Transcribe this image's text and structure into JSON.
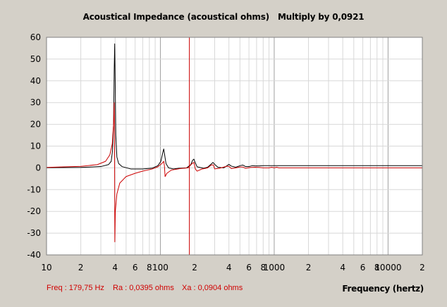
{
  "chart_data": {
    "type": "line",
    "title": "Acoustical Impedance (acoustical ohms)",
    "title_note": "Multiply by 0,0921",
    "xlabel": "Frequency (hertz)",
    "ylabel": "",
    "x_scale": "log",
    "xlim": [
      10,
      20000
    ],
    "ylim": [
      -40,
      60
    ],
    "y_ticks": [
      60,
      50,
      40,
      30,
      20,
      10,
      0,
      -10,
      -20,
      -30,
      -40
    ],
    "x_ticks": [
      {
        "value": 10,
        "label": "10"
      },
      {
        "value": 20,
        "label": "2"
      },
      {
        "value": 40,
        "label": "4"
      },
      {
        "value": 60,
        "label": "6"
      },
      {
        "value": 80,
        "label": "8"
      },
      {
        "value": 100,
        "label": "100"
      },
      {
        "value": 200,
        "label": "2"
      },
      {
        "value": 400,
        "label": "4"
      },
      {
        "value": 600,
        "label": "6"
      },
      {
        "value": 800,
        "label": "8"
      },
      {
        "value": 1000,
        "label": "1000"
      },
      {
        "value": 2000,
        "label": "2"
      },
      {
        "value": 4000,
        "label": "4"
      },
      {
        "value": 6000,
        "label": "6"
      },
      {
        "value": 8000,
        "label": "8"
      },
      {
        "value": 10000,
        "label": "10000"
      },
      {
        "value": 20000,
        "label": "2"
      }
    ],
    "grid": true,
    "cursor_x": 179.75,
    "series": [
      {
        "color": "#000000",
        "points": [
          [
            10,
            0.1
          ],
          [
            20,
            0.2
          ],
          [
            30,
            0.6
          ],
          [
            35,
            1.5
          ],
          [
            37,
            3
          ],
          [
            38,
            8
          ],
          [
            38.8,
            20
          ],
          [
            39.3,
            45
          ],
          [
            39.7,
            57
          ],
          [
            40.1,
            40
          ],
          [
            40.6,
            15
          ],
          [
            41.5,
            5
          ],
          [
            43,
            2
          ],
          [
            46,
            0.6
          ],
          [
            55,
            -0.5
          ],
          [
            70,
            -0.5
          ],
          [
            85,
            -0.1
          ],
          [
            95,
            1
          ],
          [
            101,
            3
          ],
          [
            105,
            7
          ],
          [
            107,
            8.7
          ],
          [
            109,
            6
          ],
          [
            112,
            2
          ],
          [
            118,
            0
          ],
          [
            130,
            -0.5
          ],
          [
            145,
            -0.2
          ],
          [
            170,
            0
          ],
          [
            185,
            1.5
          ],
          [
            192,
            3.5
          ],
          [
            197,
            4
          ],
          [
            202,
            2.5
          ],
          [
            210,
            0.5
          ],
          [
            240,
            -0.2
          ],
          [
            260,
            0.3
          ],
          [
            280,
            1.8
          ],
          [
            290,
            2.5
          ],
          [
            300,
            1.6
          ],
          [
            320,
            0.3
          ],
          [
            360,
            0
          ],
          [
            385,
            1
          ],
          [
            400,
            1.6
          ],
          [
            420,
            0.8
          ],
          [
            460,
            0.3
          ],
          [
            500,
            1
          ],
          [
            530,
            1.3
          ],
          [
            560,
            0.6
          ],
          [
            600,
            0.6
          ],
          [
            640,
            1
          ],
          [
            680,
            0.9
          ],
          [
            740,
            0.9
          ],
          [
            800,
            1
          ],
          [
            1000,
            1
          ],
          [
            2000,
            1
          ],
          [
            5000,
            1
          ],
          [
            10000,
            1
          ],
          [
            20000,
            1
          ]
        ]
      },
      {
        "color": "#cc0000",
        "points": [
          [
            10,
            0.2
          ],
          [
            20,
            0.7
          ],
          [
            28,
            1.5
          ],
          [
            33,
            3
          ],
          [
            36,
            6
          ],
          [
            37.8,
            11
          ],
          [
            38.8,
            20
          ],
          [
            39.3,
            30
          ],
          [
            39.6,
            10
          ],
          [
            39.8,
            -34
          ],
          [
            40.2,
            -20
          ],
          [
            41.5,
            -12
          ],
          [
            44,
            -7
          ],
          [
            50,
            -4
          ],
          [
            60,
            -2.5
          ],
          [
            70,
            -1.5
          ],
          [
            85,
            -0.5
          ],
          [
            95,
            0.5
          ],
          [
            103,
            2
          ],
          [
            107,
            3
          ],
          [
            108.5,
            1
          ],
          [
            110,
            -4
          ],
          [
            114,
            -2.5
          ],
          [
            125,
            -1
          ],
          [
            150,
            -0.3
          ],
          [
            175,
            0
          ],
          [
            190,
            2
          ],
          [
            197,
            2.5
          ],
          [
            203,
            -0.5
          ],
          [
            210,
            -1.5
          ],
          [
            230,
            -0.6
          ],
          [
            260,
            0
          ],
          [
            280,
            1.3
          ],
          [
            292,
            1.4
          ],
          [
            300,
            -0.5
          ],
          [
            330,
            -0.2
          ],
          [
            380,
            0.7
          ],
          [
            400,
            0.7
          ],
          [
            420,
            -0.3
          ],
          [
            460,
            0
          ],
          [
            500,
            0.4
          ],
          [
            530,
            0.4
          ],
          [
            560,
            -0.2
          ],
          [
            620,
            0.2
          ],
          [
            680,
            0.3
          ],
          [
            740,
            0.2
          ],
          [
            800,
            0
          ],
          [
            900,
            0
          ],
          [
            950,
            0.3
          ],
          [
            1000,
            0
          ],
          [
            1050,
            0.3
          ],
          [
            1100,
            0
          ],
          [
            2000,
            0
          ],
          [
            5000,
            0
          ],
          [
            10000,
            0
          ],
          [
            20000,
            0
          ]
        ]
      }
    ]
  },
  "status": {
    "freq": "Freq : 179,75 Hz",
    "ra": "Ra : 0,0395 ohms",
    "xa": "Xa : 0,0904 ohms"
  },
  "title_parts": {
    "main": "Acoustical Impedance (acoustical ohms)",
    "note": "Multiply by 0,0921"
  }
}
